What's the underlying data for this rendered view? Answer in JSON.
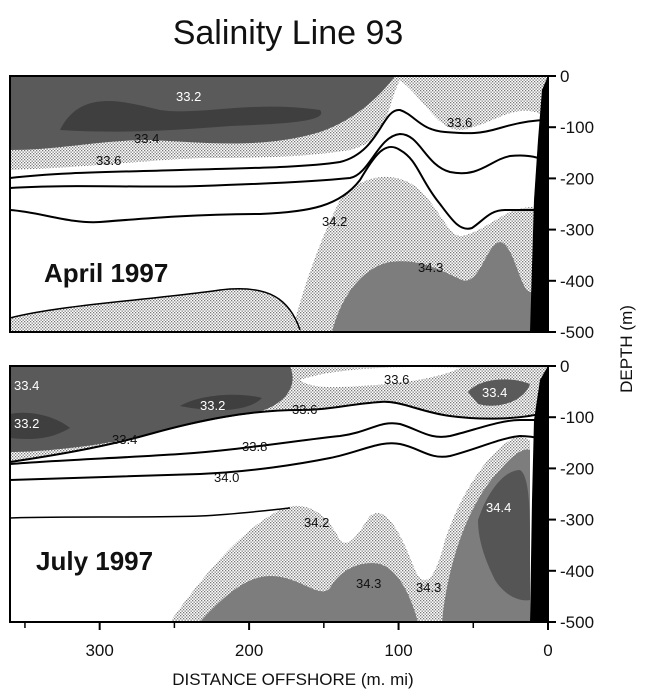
{
  "title": "Salinity Line 93",
  "colors": {
    "fresh": "#5a5a5a",
    "mid": "#a8a8a8",
    "light": "#d4d4d4",
    "white": "#ffffff",
    "high": "#7d7d7d",
    "highest": "#555555",
    "coast": "#000000",
    "line": "#000000"
  },
  "chart_data": [
    {
      "type": "contour",
      "panel_label": "April 1997",
      "xlabel": "DISTANCE OFFSHORE (m. mi)",
      "ylabel": "DEPTH (m)",
      "xlim": [
        360,
        0
      ],
      "ylim": [
        0,
        -500
      ],
      "x_ticks": [
        "300",
        "200",
        "100",
        "0"
      ],
      "y_ticks": [
        "0",
        "-100",
        "-200",
        "-300",
        "-400",
        "-500"
      ],
      "contour_labels": [
        "33.2",
        "33.4",
        "33.6",
        "33.6",
        "34.2",
        "34.3"
      ]
    },
    {
      "type": "contour",
      "panel_label": "July 1997",
      "xlabel": "DISTANCE OFFSHORE (m. mi)",
      "ylabel": "DEPTH (m)",
      "xlim": [
        360,
        0
      ],
      "ylim": [
        0,
        -500
      ],
      "x_ticks": [
        "300",
        "200",
        "100",
        "0"
      ],
      "y_ticks": [
        "0",
        "-100",
        "-200",
        "-300",
        "-400",
        "-500"
      ],
      "contour_labels": [
        "33.4",
        "33.2",
        "33.2",
        "33.4",
        "33.6",
        "33.6",
        "33.4",
        "33.8",
        "34.0",
        "34.2",
        "34.3",
        "34.3",
        "34.4"
      ]
    }
  ]
}
